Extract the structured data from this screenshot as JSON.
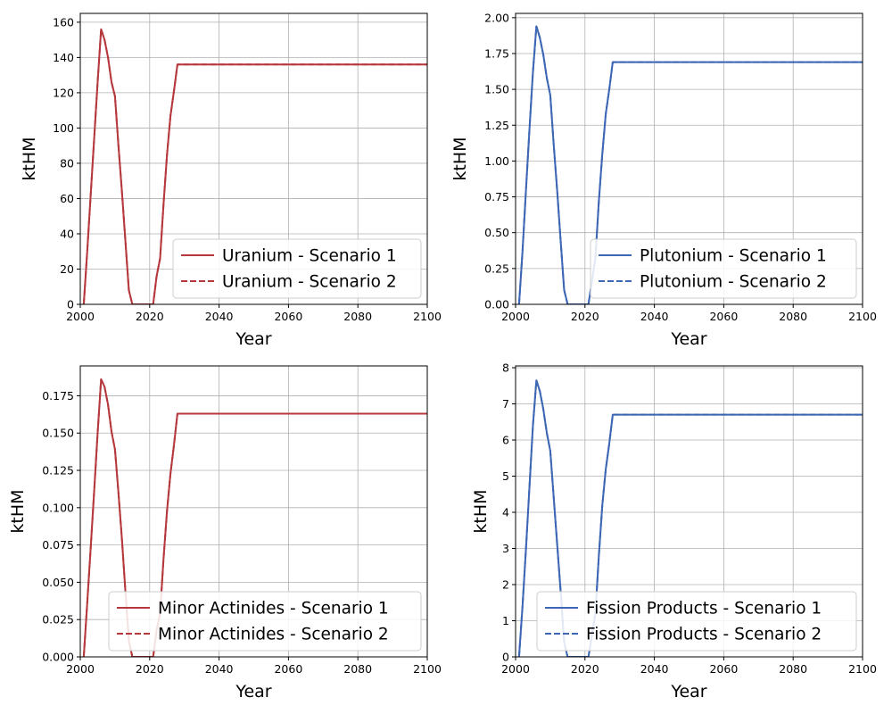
{
  "chart_data": [
    {
      "type": "line",
      "xlabel": "Year",
      "ylabel": "ktHM",
      "xlim": [
        2000,
        2100
      ],
      "ylim": [
        0,
        165
      ],
      "xticks": [
        "2000",
        "2020",
        "2040",
        "2060",
        "2080",
        "2100"
      ],
      "yticks": [
        "0",
        "20",
        "40",
        "60",
        "80",
        "100",
        "120",
        "140",
        "160"
      ],
      "grid": true,
      "legend_position": "lower-right",
      "color": "#b5383d",
      "series": [
        {
          "name": "Uranium - Scenario 1",
          "style": "solid",
          "x": [
            2001,
            2002,
            2003,
            2004,
            2005,
            2006,
            2007,
            2008,
            2009,
            2010,
            2011,
            2012,
            2013,
            2014,
            2015,
            2016,
            2017,
            2018,
            2019,
            2020,
            2021,
            2022,
            2023,
            2024,
            2025,
            2026,
            2027,
            2028,
            2100
          ],
          "y": [
            0,
            30,
            62,
            94,
            126,
            156,
            150,
            140,
            126,
            118,
            90,
            64,
            36,
            8,
            0,
            0,
            0,
            0,
            0,
            0,
            0,
            16,
            26,
            57,
            85,
            107,
            121,
            136,
            136
          ]
        },
        {
          "name": "Uranium - Scenario 2",
          "style": "dashed",
          "x": [
            2001,
            2002,
            2003,
            2004,
            2005,
            2006,
            2007,
            2008,
            2009,
            2010,
            2011,
            2012,
            2013,
            2014,
            2015,
            2016,
            2017,
            2018,
            2019,
            2020,
            2021,
            2022,
            2023,
            2024,
            2025,
            2026,
            2027,
            2028,
            2100
          ],
          "y": [
            0,
            30,
            62,
            94,
            126,
            156,
            150,
            140,
            126,
            118,
            90,
            64,
            36,
            8,
            0,
            0,
            0,
            0,
            0,
            0,
            0,
            16,
            26,
            57,
            85,
            107,
            121,
            136,
            136
          ]
        }
      ]
    },
    {
      "type": "line",
      "xlabel": "Year",
      "ylabel": "ktHM",
      "xlim": [
        2000,
        2100
      ],
      "ylim": [
        0,
        2.03
      ],
      "xticks": [
        "2000",
        "2020",
        "2040",
        "2060",
        "2080",
        "2100"
      ],
      "yticks": [
        "0.00",
        "0.25",
        "0.50",
        "0.75",
        "1.00",
        "1.25",
        "1.50",
        "1.75",
        "2.00"
      ],
      "grid": true,
      "legend_position": "lower-right",
      "color": "#3d67b5",
      "series": [
        {
          "name": "Plutonium - Scenario 1",
          "style": "solid",
          "x": [
            2001,
            2002,
            2003,
            2004,
            2005,
            2006,
            2007,
            2008,
            2009,
            2010,
            2011,
            2012,
            2013,
            2014,
            2015,
            2016,
            2017,
            2018,
            2019,
            2020,
            2021,
            2022,
            2023,
            2024,
            2025,
            2026,
            2027,
            2028,
            2100
          ],
          "y": [
            0,
            0.37,
            0.8,
            1.22,
            1.62,
            1.94,
            1.86,
            1.74,
            1.58,
            1.46,
            1.11,
            0.79,
            0.44,
            0.1,
            0,
            0,
            0,
            0,
            0,
            0,
            0,
            0.16,
            0.32,
            0.72,
            1.05,
            1.33,
            1.5,
            1.69,
            1.69
          ]
        },
        {
          "name": "Plutonium - Scenario 2",
          "style": "dashed",
          "x": [
            2001,
            2002,
            2003,
            2004,
            2005,
            2006,
            2007,
            2008,
            2009,
            2010,
            2011,
            2012,
            2013,
            2014,
            2015,
            2016,
            2017,
            2018,
            2019,
            2020,
            2021,
            2022,
            2023,
            2024,
            2025,
            2026,
            2027,
            2028,
            2100
          ],
          "y": [
            0,
            0.37,
            0.8,
            1.22,
            1.62,
            1.94,
            1.86,
            1.74,
            1.58,
            1.46,
            1.11,
            0.79,
            0.44,
            0.1,
            0,
            0,
            0,
            0,
            0,
            0,
            0,
            0.16,
            0.32,
            0.72,
            1.05,
            1.33,
            1.5,
            1.69,
            1.69
          ]
        }
      ]
    },
    {
      "type": "line",
      "xlabel": "Year",
      "ylabel": "ktHM",
      "xlim": [
        2000,
        2100
      ],
      "ylim": [
        0,
        0.195
      ],
      "xticks": [
        "2000",
        "2020",
        "2040",
        "2060",
        "2080",
        "2100"
      ],
      "yticks": [
        "0.000",
        "0.025",
        "0.050",
        "0.075",
        "0.100",
        "0.125",
        "0.150",
        "0.175"
      ],
      "grid": true,
      "legend_position": "lower-right",
      "color": "#b5383d",
      "series": [
        {
          "name": "Minor Actinides - Scenario 1",
          "style": "solid",
          "x": [
            2001,
            2002,
            2003,
            2004,
            2005,
            2006,
            2007,
            2008,
            2009,
            2010,
            2011,
            2012,
            2013,
            2014,
            2015,
            2016,
            2017,
            2018,
            2019,
            2020,
            2021,
            2022,
            2023,
            2024,
            2025,
            2026,
            2027,
            2028,
            2100
          ],
          "y": [
            0,
            0.036,
            0.073,
            0.111,
            0.15,
            0.186,
            0.181,
            0.169,
            0.151,
            0.139,
            0.11,
            0.079,
            0.044,
            0.011,
            0,
            0,
            0,
            0,
            0,
            0,
            0,
            0.018,
            0.029,
            0.066,
            0.098,
            0.123,
            0.142,
            0.163,
            0.163
          ]
        },
        {
          "name": "Minor Actinides - Scenario 2",
          "style": "dashed",
          "x": [
            2001,
            2002,
            2003,
            2004,
            2005,
            2006,
            2007,
            2008,
            2009,
            2010,
            2011,
            2012,
            2013,
            2014,
            2015,
            2016,
            2017,
            2018,
            2019,
            2020,
            2021,
            2022,
            2023,
            2024,
            2025,
            2026,
            2027,
            2028,
            2100
          ],
          "y": [
            0,
            0.036,
            0.073,
            0.111,
            0.15,
            0.186,
            0.181,
            0.169,
            0.151,
            0.139,
            0.11,
            0.079,
            0.044,
            0.011,
            0,
            0,
            0,
            0,
            0,
            0,
            0,
            0.018,
            0.029,
            0.066,
            0.098,
            0.123,
            0.142,
            0.163,
            0.163
          ]
        }
      ]
    },
    {
      "type": "line",
      "xlabel": "Year",
      "ylabel": "ktHM",
      "xlim": [
        2000,
        2100
      ],
      "ylim": [
        0,
        8.05
      ],
      "xticks": [
        "2000",
        "2020",
        "2040",
        "2060",
        "2080",
        "2100"
      ],
      "yticks": [
        "0",
        "1",
        "2",
        "3",
        "4",
        "5",
        "6",
        "7",
        "8"
      ],
      "grid": true,
      "legend_position": "lower-right",
      "color": "#3d67b5",
      "series": [
        {
          "name": "Fission Products - Scenario 1",
          "style": "solid",
          "x": [
            2001,
            2002,
            2003,
            2004,
            2005,
            2006,
            2007,
            2008,
            2009,
            2010,
            2011,
            2012,
            2013,
            2014,
            2015,
            2016,
            2017,
            2018,
            2019,
            2020,
            2021,
            2022,
            2023,
            2024,
            2025,
            2026,
            2027,
            2028,
            2100
          ],
          "y": [
            0,
            1.4,
            3.0,
            4.7,
            6.4,
            7.65,
            7.35,
            6.85,
            6.2,
            5.7,
            4.4,
            3.1,
            1.8,
            0.4,
            0,
            0,
            0,
            0,
            0,
            0,
            0,
            0.6,
            1.2,
            2.8,
            4.2,
            5.2,
            5.9,
            6.7,
            6.7
          ]
        },
        {
          "name": "Fission Products - Scenario 2",
          "style": "dashed",
          "x": [
            2001,
            2002,
            2003,
            2004,
            2005,
            2006,
            2007,
            2008,
            2009,
            2010,
            2011,
            2012,
            2013,
            2014,
            2015,
            2016,
            2017,
            2018,
            2019,
            2020,
            2021,
            2022,
            2023,
            2024,
            2025,
            2026,
            2027,
            2028,
            2100
          ],
          "y": [
            0,
            1.4,
            3.0,
            4.7,
            6.4,
            7.65,
            7.35,
            6.85,
            6.2,
            5.7,
            4.4,
            3.1,
            1.8,
            0.4,
            0,
            0,
            0,
            0,
            0,
            0,
            0,
            0.6,
            1.2,
            2.8,
            4.2,
            5.2,
            5.9,
            6.7,
            6.7
          ]
        }
      ]
    }
  ]
}
